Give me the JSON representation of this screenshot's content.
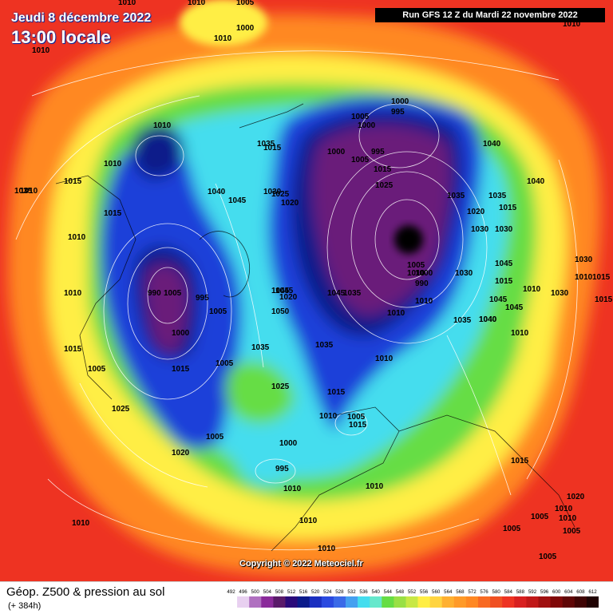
{
  "header": {
    "date": "Jeudi 8 décembre 2022",
    "time": "13:00 locale",
    "run": "Run GFS 12 Z du Mardi 22 novembre 2022"
  },
  "copyright": "Copyright © 2022 Meteociel.fr",
  "footer": {
    "title": "Géop. Z500 & pression au sol",
    "subtitle": "(+ 384h)"
  },
  "colors": {
    "red": "#ee3322",
    "orange": "#ff8822",
    "yellow": "#ffee44",
    "green": "#66dd44",
    "cyan": "#44ddee",
    "blue": "#1a3fd9",
    "navy": "#0a1a8a",
    "purple": "#6a1a7a"
  },
  "legend": {
    "values": [
      "492",
      "496",
      "500",
      "504",
      "508",
      "512",
      "516",
      "520",
      "524",
      "528",
      "532",
      "536",
      "540",
      "544",
      "548",
      "552",
      "556",
      "560",
      "564",
      "568",
      "572",
      "576",
      "580",
      "584",
      "588",
      "592",
      "596",
      "600",
      "604",
      "608",
      "612"
    ],
    "colors": [
      "#ffffff",
      "#e8d0f0",
      "#b070c0",
      "#8a2a9a",
      "#5a1a6a",
      "#2a0a7a",
      "#0a1a8a",
      "#1a2fc0",
      "#2a4ae0",
      "#3a6ae8",
      "#44a0f0",
      "#44ddee",
      "#66e8cc",
      "#66dd44",
      "#99e044",
      "#c8e844",
      "#ffee44",
      "#ffd440",
      "#ffb030",
      "#ff9a28",
      "#ff8822",
      "#f86a22",
      "#f05022",
      "#ee3322",
      "#d82020",
      "#c01818",
      "#a01010",
      "#800808",
      "#600606",
      "#400404",
      "#200202"
    ]
  },
  "pressure_labels": [
    "1010",
    "1010",
    "1005",
    "1000",
    "1010",
    "1010",
    "1000",
    "995",
    "1005",
    "1000",
    "995",
    "1035",
    "1015",
    "1010",
    "1010",
    "1000",
    "1005",
    "1015",
    "1025",
    "1040",
    "1010",
    "1015",
    "1040",
    "1045",
    "1030",
    "1025",
    "1020",
    "1035",
    "1035",
    "1040",
    "1020",
    "1015",
    "1010",
    "1015",
    "1030",
    "1030",
    "1030",
    "1010",
    "1010",
    "1005",
    "1000",
    "990",
    "1030",
    "1045",
    "1015",
    "1045",
    "1020",
    "990",
    "1005",
    "1045",
    "1040",
    "1050",
    "1035",
    "1045",
    "1010",
    "1010",
    "1045",
    "995",
    "1000",
    "1005",
    "1005",
    "1015",
    "1010",
    "1035",
    "1035",
    "1025",
    "1015",
    "1005",
    "1015",
    "1010",
    "1020",
    "1005",
    "1000",
    "995",
    "1010",
    "1005",
    "1015",
    "1010",
    "1010",
    "1025",
    "1015",
    "1010",
    "1005",
    "1005",
    "1020",
    "1010",
    "1005",
    "1010",
    "1010",
    "1010",
    "1015",
    "1010",
    "1005",
    "1015",
    "1010",
    "1030",
    "1035",
    "1040",
    "1045",
    "1010",
    "1035"
  ]
}
